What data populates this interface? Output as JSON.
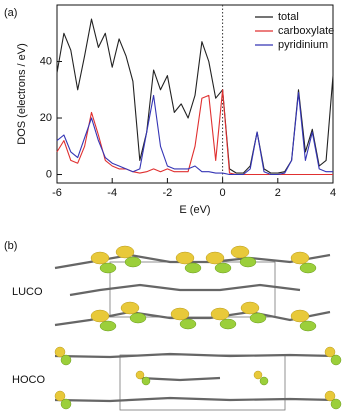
{
  "chart_data": {
    "type": "line",
    "xlabel": "E (eV)",
    "ylabel": "DOS (electrons / eV)",
    "x": [
      -6,
      -5.75,
      -5.5,
      -5.25,
      -5,
      -4.75,
      -4.5,
      -4.25,
      -4,
      -3.75,
      -3.5,
      -3.25,
      -3,
      -2.75,
      -2.5,
      -2.25,
      -2,
      -1.75,
      -1.5,
      -1.25,
      -1,
      -0.75,
      -0.5,
      -0.25,
      0,
      0.25,
      0.5,
      0.75,
      1,
      1.25,
      1.5,
      1.75,
      2,
      2.25,
      2.5,
      2.75,
      3,
      3.25,
      3.5,
      3.75,
      4
    ],
    "series": [
      {
        "name": "total",
        "color": "#222222",
        "values": [
          36,
          50,
          44,
          30,
          42,
          55,
          45,
          50,
          38,
          48,
          42,
          33,
          5,
          15,
          37,
          30,
          35,
          22,
          25,
          20,
          28,
          47,
          40,
          27,
          30,
          2,
          0.5,
          0.5,
          3,
          15,
          2,
          0.5,
          0.5,
          1,
          5,
          30,
          8,
          16,
          3,
          5,
          35
        ]
      },
      {
        "name": "carboxylate",
        "color": "#e03030",
        "values": [
          8,
          12,
          5,
          4,
          10,
          22,
          14,
          5,
          3,
          2,
          2,
          1,
          0.5,
          1,
          2,
          1,
          2,
          1,
          1,
          1,
          10,
          27,
          28,
          5,
          30,
          0.5,
          0,
          0,
          0,
          0,
          0,
          0,
          0,
          0,
          0,
          0,
          0,
          0,
          0,
          0,
          0
        ]
      },
      {
        "name": "pyridinium",
        "color": "#3535b5",
        "values": [
          12,
          14,
          8,
          6,
          13,
          20,
          12,
          6,
          4,
          3,
          2,
          1,
          2,
          15,
          28,
          10,
          3,
          2,
          2,
          2,
          3,
          1,
          1,
          0.5,
          0.5,
          0,
          0,
          0,
          2,
          15,
          1,
          0,
          0,
          0.5,
          5,
          29,
          5,
          15,
          2,
          1,
          1
        ]
      }
    ],
    "xlim": [
      -6,
      4
    ],
    "xticks": [
      -6,
      -4,
      -2,
      0,
      2,
      4
    ],
    "ylim": [
      -3,
      60
    ],
    "yticks": [
      0,
      20,
      40
    ],
    "reference_line_x": 0,
    "legend": "upper right",
    "grid": false
  },
  "panel_labels": [
    "(a)",
    "(b)"
  ],
  "structure_labels": [
    "LUCO",
    "HOCO"
  ]
}
